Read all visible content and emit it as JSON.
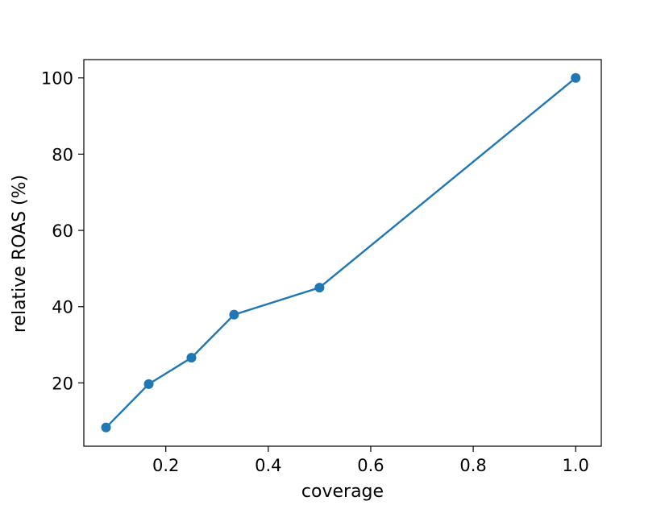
{
  "chart_data": {
    "type": "line",
    "title": "",
    "xlabel": "coverage",
    "ylabel": "relative ROAS (%)",
    "xlim": [
      0.04,
      1.05
    ],
    "ylim": [
      3.4,
      104.8
    ],
    "x_ticks": [
      0.2,
      0.4,
      0.6,
      0.8,
      1.0
    ],
    "x_tick_labels": [
      "0.2",
      "0.4",
      "0.6",
      "0.8",
      "1.0"
    ],
    "y_ticks": [
      20,
      40,
      60,
      80,
      100
    ],
    "y_tick_labels": [
      "20",
      "40",
      "60",
      "80",
      "100"
    ],
    "grid": false,
    "series": [
      {
        "color": "#1f77b4",
        "marker": "circle",
        "x": [
          0.0833,
          0.1667,
          0.25,
          0.3333,
          0.5,
          1.0
        ],
        "y": [
          8.3,
          19.7,
          26.6,
          37.9,
          45.0,
          100.0
        ]
      }
    ]
  }
}
